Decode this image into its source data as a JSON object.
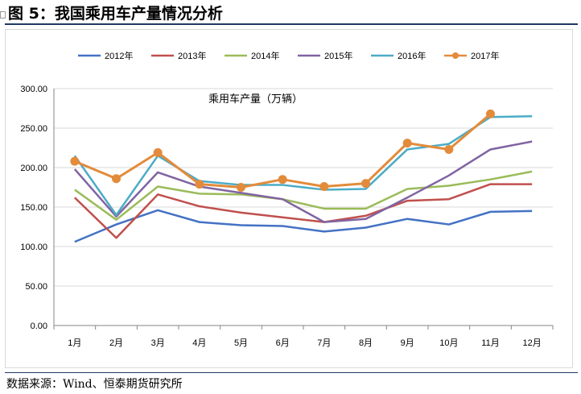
{
  "figure": {
    "title": "图 5：我国乘用车产量情况分析",
    "source": "数据来源：Wind、恒泰期货研究所"
  },
  "chart_data": {
    "type": "line",
    "title": "乘用车产量（万辆）",
    "xlabel": "",
    "ylabel": "",
    "categories": [
      "1月",
      "2月",
      "3月",
      "4月",
      "5月",
      "6月",
      "7月",
      "8月",
      "9月",
      "10月",
      "11月",
      "12月"
    ],
    "ylim": [
      0,
      300
    ],
    "ytick_labels": [
      "0.00",
      "50.00",
      "100.00",
      "150.00",
      "200.00",
      "250.00",
      "300.00"
    ],
    "grid": "horizontal",
    "legend_position": "top",
    "series": [
      {
        "name": "2012年",
        "color": "#4472c4",
        "marker": "none",
        "values": [
          106,
          128,
          146,
          131,
          127,
          126,
          119,
          124,
          135,
          128,
          144,
          145
        ]
      },
      {
        "name": "2013年",
        "color": "#c0504d",
        "marker": "none",
        "values": [
          162,
          111,
          166,
          151,
          143,
          137,
          131,
          139,
          158,
          160,
          179,
          179
        ]
      },
      {
        "name": "2014年",
        "color": "#9bbb59",
        "marker": "none",
        "values": [
          172,
          134,
          176,
          167,
          166,
          160,
          148,
          148,
          173,
          177,
          185,
          195
        ]
      },
      {
        "name": "2015年",
        "color": "#8064a2",
        "marker": "none",
        "values": [
          198,
          138,
          194,
          176,
          168,
          160,
          131,
          135,
          162,
          190,
          223,
          233
        ]
      },
      {
        "name": "2016年",
        "color": "#4bacc6",
        "marker": "none",
        "values": [
          215,
          140,
          215,
          183,
          178,
          178,
          172,
          173,
          223,
          230,
          264,
          265
        ]
      },
      {
        "name": "2017年",
        "color": "#e38b3b",
        "marker": "circle",
        "values": [
          208,
          186,
          219,
          179,
          175,
          185,
          176,
          180,
          231,
          223,
          268,
          null
        ]
      }
    ]
  }
}
